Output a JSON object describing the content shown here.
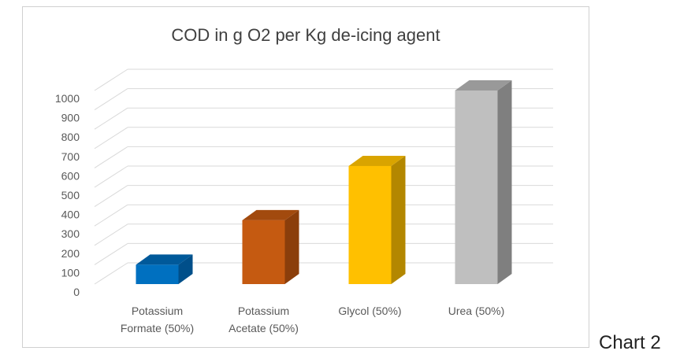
{
  "caption": "Chart 2",
  "chart_data": {
    "type": "bar",
    "title": "COD in g O2 per Kg de-icing agent",
    "categories": [
      [
        "Potassium",
        "Formate (50%)"
      ],
      [
        "Potassium",
        "Acetate (50%)"
      ],
      [
        "Glycol (50%)"
      ],
      [
        "Urea (50%)"
      ]
    ],
    "values": [
      100,
      330,
      610,
      1000
    ],
    "colors": [
      "#0070c0",
      "#c55a11",
      "#ffc000",
      "#bfbfbf"
    ],
    "side_colors": [
      "#004f8a",
      "#8b3e0b",
      "#b38700",
      "#7f7f7f"
    ],
    "top_colors": [
      "#00599a",
      "#a24a0e",
      "#d9a400",
      "#999999"
    ],
    "ylim": [
      0,
      1000
    ],
    "yticks": [
      "0",
      "100",
      "200",
      "300",
      "400",
      "500",
      "600",
      "700",
      "800",
      "900",
      "1000"
    ],
    "grid": true,
    "three_d": true
  }
}
